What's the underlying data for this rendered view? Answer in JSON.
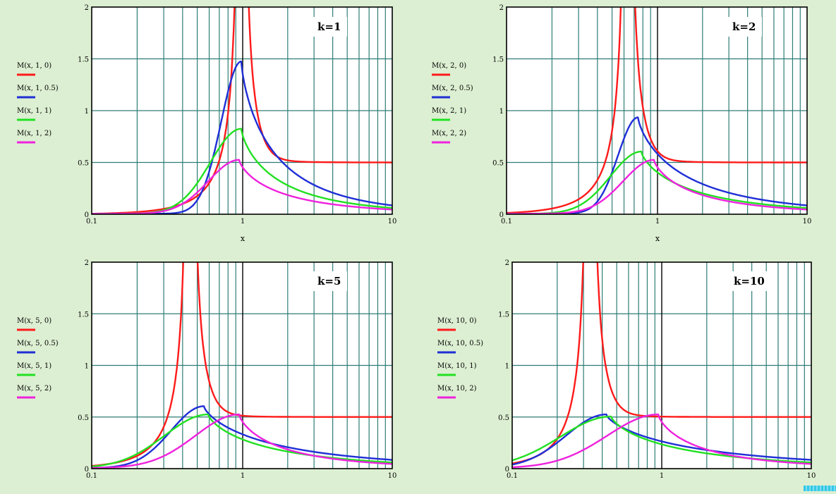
{
  "colors": {
    "background": "#dcefd2",
    "plot_background": "#ffffff",
    "grid": "#2e7d75",
    "axis": "#000000",
    "series": [
      "#ff1a1a",
      "#1f2fd6",
      "#22e022",
      "#ee22dd"
    ]
  },
  "chart_data": [
    {
      "type": "line",
      "title": "k=1",
      "k": 1,
      "xscale": "log",
      "xlim": [
        0.1,
        10
      ],
      "ylim": [
        0,
        2
      ],
      "xlabel": "x",
      "ylabel": "",
      "xticks": [
        "0.1",
        "1",
        "10"
      ],
      "yticks": [
        "0",
        "0.5",
        "1",
        "1.5",
        "2"
      ],
      "grid": true,
      "legend": "left",
      "series": [
        {
          "name": "M(x, 1, 0)",
          "zeta": 0,
          "color": "#ff1a1a"
        },
        {
          "name": "M(x, 1, 0.5)",
          "zeta": 0.5,
          "color": "#1f2fd6"
        },
        {
          "name": "M(x, 1, 1)",
          "zeta": 1,
          "color": "#22e022"
        },
        {
          "name": "M(x, 1, 2)",
          "zeta": 2,
          "color": "#ee22dd"
        }
      ]
    },
    {
      "type": "line",
      "title": "k=2",
      "k": 2,
      "xscale": "log",
      "xlim": [
        0.1,
        10
      ],
      "ylim": [
        0,
        2
      ],
      "xlabel": "x",
      "ylabel": "",
      "xticks": [
        "0.1",
        "1",
        "10"
      ],
      "yticks": [
        "0",
        "0.5",
        "1",
        "1.5",
        "2"
      ],
      "grid": true,
      "legend": "left",
      "series": [
        {
          "name": "M(x, 2, 0)",
          "zeta": 0,
          "color": "#ff1a1a"
        },
        {
          "name": "M(x, 2, 0.5)",
          "zeta": 0.5,
          "color": "#1f2fd6"
        },
        {
          "name": "M(x, 2, 1)",
          "zeta": 1,
          "color": "#22e022"
        },
        {
          "name": "M(x, 2, 2)",
          "zeta": 2,
          "color": "#ee22dd"
        }
      ]
    },
    {
      "type": "line",
      "title": "k=5",
      "k": 5,
      "xscale": "log",
      "xlim": [
        0.1,
        10
      ],
      "ylim": [
        0,
        2
      ],
      "xlabel": "",
      "ylabel": "",
      "xticks": [
        "0.1",
        "1",
        "10"
      ],
      "yticks": [
        "0",
        "0.5",
        "1",
        "1.5",
        "2"
      ],
      "grid": true,
      "legend": "left",
      "series": [
        {
          "name": "M(x, 5, 0)",
          "zeta": 0,
          "color": "#ff1a1a"
        },
        {
          "name": "M(x, 5, 0.5)",
          "zeta": 0.5,
          "color": "#1f2fd6"
        },
        {
          "name": "M(x, 5, 1)",
          "zeta": 1,
          "color": "#22e022"
        },
        {
          "name": "M(x, 5, 2)",
          "zeta": 2,
          "color": "#ee22dd"
        }
      ]
    },
    {
      "type": "line",
      "title": "k=10",
      "k": 10,
      "xscale": "log",
      "xlim": [
        0.1,
        10
      ],
      "ylim": [
        0,
        2
      ],
      "xlabel": "",
      "ylabel": "",
      "xticks": [
        "0.1",
        "1",
        "10"
      ],
      "yticks": [
        "0",
        "0.5",
        "1",
        "1.5",
        "2"
      ],
      "grid": true,
      "legend": "left",
      "series": [
        {
          "name": "M(x, 10, 0)",
          "zeta": 0,
          "color": "#ff1a1a"
        },
        {
          "name": "M(x, 10, 0.5)",
          "zeta": 0.5,
          "color": "#1f2fd6"
        },
        {
          "name": "M(x, 10, 1)",
          "zeta": 1,
          "color": "#22e022"
        },
        {
          "name": "M(x, 10, 2)",
          "zeta": 2,
          "color": "#ee22dd"
        }
      ]
    }
  ]
}
